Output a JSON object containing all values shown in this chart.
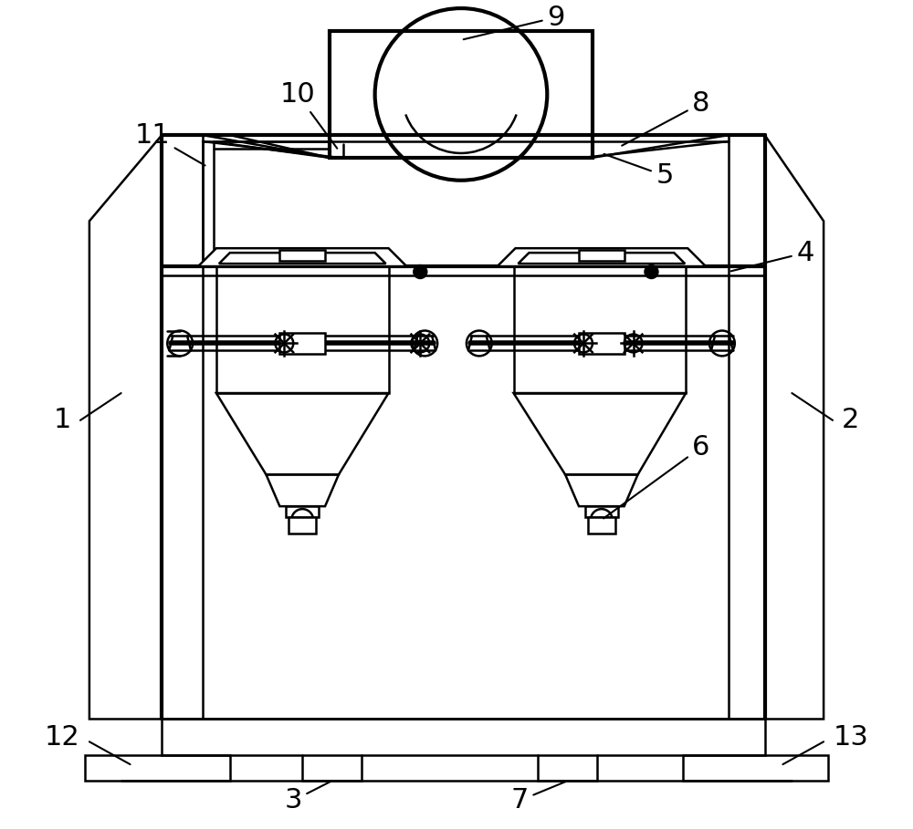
{
  "bg_color": "#ffffff",
  "line_color": "#000000",
  "lw": 1.8,
  "tlw": 3.0,
  "fig_width": 10.0,
  "fig_height": 9.09,
  "label_fontsize": 22
}
